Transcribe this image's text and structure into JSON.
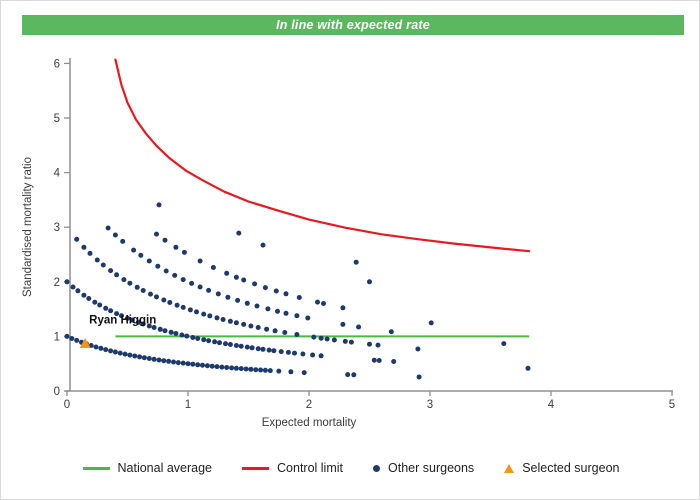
{
  "header": {
    "status_label": "In line with expected rate",
    "bg_color": "#5cb85f"
  },
  "chart_data": {
    "type": "scatter",
    "title": "In line with expected rate",
    "xlabel": "Expected mortality",
    "ylabel": "Standardised mortality ratio",
    "xlim": [
      0,
      5
    ],
    "ylim": [
      0,
      6
    ],
    "x_ticks": [
      0,
      1,
      2,
      3,
      4,
      5
    ],
    "y_ticks": [
      0,
      1,
      2,
      3,
      4,
      5,
      6
    ],
    "grid": false,
    "legend_position": "bottom-center",
    "national_average": {
      "y": 1,
      "x_start": 0.4,
      "x_end": 3.82,
      "color": "#4cb648"
    },
    "control_limit": {
      "color": "#e8191f",
      "points": [
        [
          0.4,
          6.07
        ],
        [
          0.45,
          5.6
        ],
        [
          0.5,
          5.28
        ],
        [
          0.57,
          4.97
        ],
        [
          0.65,
          4.72
        ],
        [
          0.74,
          4.49
        ],
        [
          0.85,
          4.26
        ],
        [
          0.98,
          4.04
        ],
        [
          1.12,
          3.86
        ],
        [
          1.3,
          3.65
        ],
        [
          1.5,
          3.47
        ],
        [
          1.75,
          3.3
        ],
        [
          2.0,
          3.14
        ],
        [
          2.3,
          2.99
        ],
        [
          2.6,
          2.87
        ],
        [
          2.9,
          2.78
        ],
        [
          3.2,
          2.7
        ],
        [
          3.5,
          2.63
        ],
        [
          3.82,
          2.56
        ]
      ]
    },
    "other_surgeons": {
      "color": "#1e3a6d",
      "smr_formula": "smr = deaths / (expected + 1)",
      "bands": [
        {
          "deaths": 1,
          "expected": [
            0,
            0.04,
            0.08,
            0.12,
            0.16,
            0.2,
            0.24,
            0.28,
            0.32,
            0.36,
            0.4,
            0.44,
            0.48,
            0.52,
            0.56,
            0.6,
            0.64,
            0.68,
            0.72,
            0.76,
            0.8,
            0.84,
            0.88,
            0.92,
            0.96,
            1.0,
            1.04,
            1.08,
            1.12,
            1.16,
            1.2,
            1.24,
            1.28,
            1.32,
            1.36,
            1.4,
            1.44,
            1.48,
            1.52,
            1.56,
            1.6,
            1.64,
            1.68,
            1.75,
            1.85,
            1.96,
            2.32,
            2.37,
            2.91
          ]
        },
        {
          "deaths": 2,
          "expected": [
            0,
            0.05,
            0.09,
            0.14,
            0.18,
            0.23,
            0.27,
            0.32,
            0.36,
            0.41,
            0.45,
            0.5,
            0.54,
            0.59,
            0.63,
            0.68,
            0.72,
            0.77,
            0.81,
            0.86,
            0.9,
            0.95,
            0.99,
            1.04,
            1.08,
            1.13,
            1.17,
            1.22,
            1.26,
            1.31,
            1.35,
            1.4,
            1.44,
            1.49,
            1.53,
            1.58,
            1.62,
            1.67,
            1.71,
            1.77,
            1.83,
            1.88,
            1.95,
            2.03,
            2.1,
            2.54,
            2.58,
            2.7,
            3.81
          ]
        },
        {
          "deaths": 3,
          "expected": [
            0.08,
            0.14,
            0.19,
            0.25,
            0.3,
            0.36,
            0.41,
            0.47,
            0.52,
            0.58,
            0.63,
            0.69,
            0.74,
            0.8,
            0.85,
            0.91,
            0.96,
            1.02,
            1.07,
            1.13,
            1.18,
            1.24,
            1.29,
            1.35,
            1.4,
            1.46,
            1.52,
            1.58,
            1.65,
            1.72,
            1.8,
            1.9,
            2.04,
            2.1,
            2.15,
            2.21,
            2.3,
            2.35,
            2.5,
            2.57,
            2.9
          ]
        },
        {
          "deaths": 4,
          "expected": [
            0.34,
            0.4,
            0.46,
            0.55,
            0.61,
            0.68,
            0.75,
            0.82,
            0.89,
            0.96,
            1.03,
            1.1,
            1.17,
            1.25,
            1.33,
            1.41,
            1.49,
            1.57,
            1.66,
            1.74,
            1.81,
            1.9,
            1.99,
            2.28,
            2.41,
            2.68,
            3.61
          ]
        },
        {
          "deaths": 5,
          "expected": [
            0.74,
            0.81,
            0.9,
            0.97,
            1.1,
            1.21,
            1.32,
            1.4,
            1.46,
            1.55,
            1.64,
            1.73,
            1.81,
            1.92,
            2.07,
            2.12,
            2.28,
            3.01
          ]
        },
        {
          "deaths": 6,
          "expected": [
            0.76
          ]
        },
        {
          "deaths": 7,
          "expected": [
            1.42,
            1.62,
            2.5
          ]
        },
        {
          "deaths": 8,
          "expected": [
            2.39
          ]
        }
      ]
    },
    "selected_surgeon": {
      "name": "Ryan Higgin",
      "x": 0.15,
      "y": 0.87,
      "color": "#f7941d"
    }
  },
  "legend": {
    "items": [
      {
        "label": "National average",
        "marker": "line",
        "color": "#4cb648"
      },
      {
        "label": "Control limit",
        "marker": "line",
        "color": "#e8191f"
      },
      {
        "label": "Other surgeons",
        "marker": "dot",
        "color": "#1e3a6d"
      },
      {
        "label": "Selected surgeon",
        "marker": "triangle",
        "color": "#f7941d"
      }
    ]
  }
}
